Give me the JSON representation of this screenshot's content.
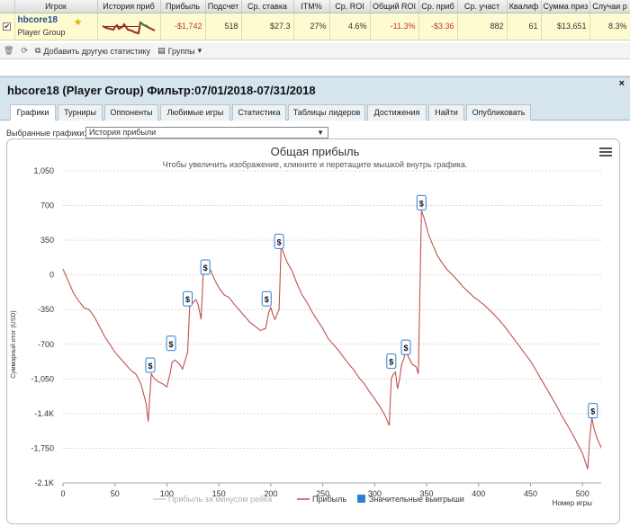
{
  "stats_table": {
    "columns": [
      "",
      "Игрок",
      "История приб",
      "Прибыль",
      "Подсчет",
      "Ср. ставка",
      "ITM%",
      "Ср. ROI",
      "Общий ROI",
      "Ср. приб",
      "Ср. участ",
      "Квалиф",
      "Сумма приз",
      "Случаи р"
    ],
    "row": {
      "player_name": "hbcore18",
      "player_group": "Player Group",
      "profit": "-$1,742",
      "count": "518",
      "avg_stake": "$27.3",
      "itm": "27%",
      "avg_roi": "4.6%",
      "total_roi": "-11.3%",
      "avg_profit": "-$3.36",
      "avg_entrants": "882",
      "qualif": "61",
      "prize_sum": "$13,651",
      "cases": "8.3%"
    }
  },
  "toolbar": {
    "add_stats_label": "Добавить другую статистику",
    "groups_label": "Группы"
  },
  "panel": {
    "title": "hbcore18 (Player Group) Фильтр:07/01/2018-07/31/2018",
    "close_label": "×"
  },
  "tabs": [
    {
      "label": "Графики",
      "active": true
    },
    {
      "label": "Турниры"
    },
    {
      "label": "Оппоненты"
    },
    {
      "label": "Любимые игры"
    },
    {
      "label": "Статистика"
    },
    {
      "label": "Таблицы лидеров"
    },
    {
      "label": "Достижения"
    },
    {
      "label": "Найти"
    },
    {
      "label": "Опубликовать"
    }
  ],
  "chart_selector": {
    "label": "Выбранные графики:",
    "value": "История прибыли"
  },
  "chart_data": {
    "type": "line",
    "title": "Общая прибыль",
    "subtitle": "Чтобы увеличить изображение, кликните и перетащите мышкой внутрь графика.",
    "xlabel": "Номер игры",
    "ylabel": "Суммарный итог (USD)",
    "xlim": [
      0,
      518
    ],
    "ylim": [
      -2100,
      1050
    ],
    "x_ticks": [
      "0",
      "50",
      "100",
      "150",
      "200",
      "250",
      "300",
      "350",
      "400",
      "450",
      "500"
    ],
    "y_ticks": [
      "1,050",
      "700",
      "350",
      "0",
      "-350",
      "-700",
      "-1,050",
      "-1.4K",
      "-1,750",
      "-2.1K"
    ],
    "y_tick_values": [
      1050,
      700,
      350,
      0,
      -350,
      -700,
      -1050,
      -1400,
      -1750,
      -2100
    ],
    "series": [
      {
        "name": "Прибыль",
        "color": "#c0504d",
        "points": [
          [
            0,
            60
          ],
          [
            5,
            -60
          ],
          [
            10,
            -180
          ],
          [
            15,
            -260
          ],
          [
            20,
            -330
          ],
          [
            25,
            -350
          ],
          [
            30,
            -420
          ],
          [
            35,
            -520
          ],
          [
            40,
            -620
          ],
          [
            45,
            -700
          ],
          [
            50,
            -780
          ],
          [
            55,
            -840
          ],
          [
            60,
            -900
          ],
          [
            65,
            -960
          ],
          [
            70,
            -1000
          ],
          [
            75,
            -1100
          ],
          [
            80,
            -1300
          ],
          [
            82,
            -1480
          ],
          [
            84,
            -1150
          ],
          [
            85,
            -1000
          ],
          [
            88,
            -1050
          ],
          [
            92,
            -1080
          ],
          [
            96,
            -1100
          ],
          [
            100,
            -1130
          ],
          [
            103,
            -1000
          ],
          [
            105,
            -880
          ],
          [
            108,
            -860
          ],
          [
            112,
            -900
          ],
          [
            115,
            -950
          ],
          [
            118,
            -850
          ],
          [
            120,
            -780
          ],
          [
            122,
            -320
          ],
          [
            125,
            -280
          ],
          [
            128,
            -250
          ],
          [
            130,
            -300
          ],
          [
            132,
            -400
          ],
          [
            133,
            -450
          ],
          [
            135,
            20
          ],
          [
            138,
            60
          ],
          [
            142,
            50
          ],
          [
            146,
            -50
          ],
          [
            150,
            -130
          ],
          [
            155,
            -200
          ],
          [
            160,
            -230
          ],
          [
            165,
            -300
          ],
          [
            170,
            -360
          ],
          [
            175,
            -420
          ],
          [
            180,
            -480
          ],
          [
            185,
            -520
          ],
          [
            190,
            -560
          ],
          [
            195,
            -540
          ],
          [
            198,
            -380
          ],
          [
            200,
            -330
          ],
          [
            202,
            -400
          ],
          [
            204,
            -450
          ],
          [
            206,
            -400
          ],
          [
            208,
            -350
          ],
          [
            210,
            300
          ],
          [
            212,
            230
          ],
          [
            216,
            120
          ],
          [
            220,
            50
          ],
          [
            225,
            -80
          ],
          [
            230,
            -200
          ],
          [
            235,
            -280
          ],
          [
            240,
            -380
          ],
          [
            245,
            -460
          ],
          [
            250,
            -540
          ],
          [
            255,
            -640
          ],
          [
            260,
            -700
          ],
          [
            265,
            -760
          ],
          [
            270,
            -830
          ],
          [
            275,
            -900
          ],
          [
            280,
            -960
          ],
          [
            285,
            -1040
          ],
          [
            290,
            -1100
          ],
          [
            295,
            -1180
          ],
          [
            300,
            -1250
          ],
          [
            305,
            -1330
          ],
          [
            310,
            -1420
          ],
          [
            314,
            -1520
          ],
          [
            316,
            -1050
          ],
          [
            318,
            -1000
          ],
          [
            320,
            -980
          ],
          [
            322,
            -1150
          ],
          [
            324,
            -1050
          ],
          [
            326,
            -900
          ],
          [
            328,
            -850
          ],
          [
            330,
            -750
          ],
          [
            332,
            -820
          ],
          [
            336,
            -900
          ],
          [
            340,
            -930
          ],
          [
            342,
            -1000
          ],
          [
            345,
            650
          ],
          [
            348,
            560
          ],
          [
            352,
            400
          ],
          [
            356,
            300
          ],
          [
            360,
            200
          ],
          [
            365,
            120
          ],
          [
            370,
            50
          ],
          [
            375,
            0
          ],
          [
            380,
            -60
          ],
          [
            385,
            -120
          ],
          [
            390,
            -170
          ],
          [
            395,
            -220
          ],
          [
            400,
            -260
          ],
          [
            405,
            -300
          ],
          [
            410,
            -350
          ],
          [
            415,
            -400
          ],
          [
            420,
            -460
          ],
          [
            425,
            -520
          ],
          [
            430,
            -590
          ],
          [
            435,
            -660
          ],
          [
            440,
            -730
          ],
          [
            445,
            -800
          ],
          [
            450,
            -870
          ],
          [
            455,
            -960
          ],
          [
            460,
            -1050
          ],
          [
            465,
            -1140
          ],
          [
            470,
            -1230
          ],
          [
            475,
            -1320
          ],
          [
            480,
            -1420
          ],
          [
            485,
            -1510
          ],
          [
            490,
            -1600
          ],
          [
            495,
            -1700
          ],
          [
            500,
            -1800
          ],
          [
            505,
            -1960
          ],
          [
            507,
            -1650
          ],
          [
            509,
            -1440
          ],
          [
            511,
            -1550
          ],
          [
            514,
            -1650
          ],
          [
            518,
            -1742
          ]
        ]
      }
    ],
    "markers": {
      "name": "Значительные выигрыши",
      "label": "$",
      "points": [
        [
          84,
          -920
        ],
        [
          104,
          -700
        ],
        [
          120,
          -250
        ],
        [
          137,
          70
        ],
        [
          196,
          -250
        ],
        [
          208,
          330
        ],
        [
          316,
          -880
        ],
        [
          330,
          -740
        ],
        [
          345,
          720
        ],
        [
          510,
          -1380
        ]
      ]
    },
    "legend": {
      "position": "bottom",
      "items": [
        {
          "label": "Прибыль за минусом рейка",
          "color": "#cccccc"
        },
        {
          "label": "Прибыль",
          "color": "#c0504d"
        },
        {
          "label": "Значительные выигрыши",
          "color": "#2a7fd4"
        }
      ]
    },
    "grid": true
  }
}
